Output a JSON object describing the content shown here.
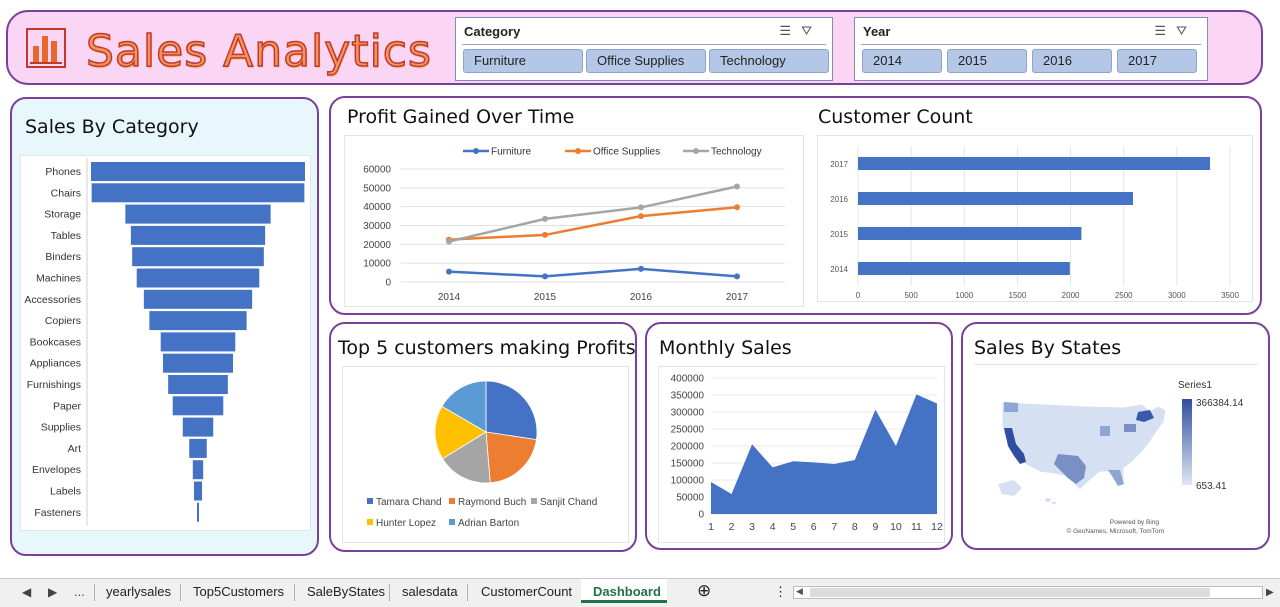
{
  "header": {
    "title": "Sales Analytics",
    "category_slicer": {
      "heading": "Category",
      "items": [
        "Furniture",
        "Office Supplies",
        "Technology"
      ]
    },
    "year_slicer": {
      "heading": "Year",
      "items": [
        "2014",
        "2015",
        "2016",
        "2017"
      ]
    }
  },
  "panels": {
    "sales_by_category": {
      "title": "Sales By Category"
    },
    "profit_over_time": {
      "title": "Profit Gained Over Time"
    },
    "customer_count": {
      "title": "Customer Count"
    },
    "top5": {
      "title": "Top 5 customers making Profits"
    },
    "monthly_sales": {
      "title": "Monthly Sales"
    },
    "sales_by_states": {
      "title": "Sales By States",
      "legend_series": "Series1",
      "max_value": "366384.14",
      "min_value": "653.41",
      "credit_1": "Powered by Bing",
      "credit_2": "© GeoNames, Microsoft, TomTom"
    }
  },
  "tabs": {
    "ellipsis": "...",
    "sheets": [
      "yearlysales",
      "Top5Customers",
      "SaleByStates",
      "salesdata",
      "CustomerCount"
    ],
    "active": "Dashboard",
    "add_symbol": "⊕",
    "menu_symbol": "⋮"
  },
  "colors": {
    "header_bg": "#fbd5f4",
    "panel_border": "#7a3f9a",
    "bar_blue": "#4472c4",
    "orange": "#ed7d31",
    "gray": "#a5a5a5",
    "yellow": "#ffc000",
    "light_blue": "#5b9bd5",
    "excel_green": "#217346"
  },
  "chart_data": [
    {
      "type": "bar",
      "title": "Sales By Category",
      "orientation": "horizontal-funnel",
      "categories": [
        "Phones",
        "Chairs",
        "Storage",
        "Tables",
        "Binders",
        "Machines",
        "Accessories",
        "Copiers",
        "Bookcases",
        "Appliances",
        "Furnishings",
        "Paper",
        "Supplies",
        "Art",
        "Envelopes",
        "Labels",
        "Fasteners"
      ],
      "values": [
        330000,
        328000,
        224000,
        207000,
        203000,
        189000,
        167000,
        150000,
        115000,
        108000,
        92000,
        78000,
        47000,
        27000,
        16000,
        12500,
        3000
      ]
    },
    {
      "type": "line",
      "title": "Profit Gained Over Time",
      "x": [
        "2014",
        "2015",
        "2016",
        "2017"
      ],
      "series": [
        {
          "name": "Furniture",
          "values": [
            5500,
            3000,
            7000,
            3000
          ],
          "color": "#4472c4"
        },
        {
          "name": "Office Supplies",
          "values": [
            22500,
            25000,
            35000,
            39700
          ],
          "color": "#ed7d31"
        },
        {
          "name": "Technology",
          "values": [
            21500,
            33500,
            39600,
            50700
          ],
          "color": "#a5a5a5"
        }
      ],
      "yticks": [
        0,
        10000,
        20000,
        30000,
        40000,
        50000,
        60000
      ],
      "ylim": [
        0,
        60000
      ],
      "legend": "top"
    },
    {
      "type": "bar",
      "title": "Customer Count",
      "orientation": "horizontal",
      "categories": [
        "2017",
        "2016",
        "2015",
        "2014"
      ],
      "values": [
        3312,
        2587,
        2102,
        1993
      ],
      "xticks": [
        0,
        500,
        1000,
        1500,
        2000,
        2500,
        3000,
        3500
      ],
      "xlim": [
        0,
        3500
      ]
    },
    {
      "type": "pie",
      "title": "Top 5 customers making Profits",
      "labels": [
        "Tamara Chand",
        "Raymond Buch",
        "Sanjit Chand",
        "Hunter Lopez",
        "Adrian Barton"
      ],
      "values": [
        8981,
        6976,
        5757,
        5622,
        5444
      ],
      "colors": [
        "#4472c4",
        "#ed7d31",
        "#a5a5a5",
        "#ffc000",
        "#5b9bd5"
      ],
      "legend": "bottom"
    },
    {
      "type": "area",
      "title": "Monthly Sales",
      "x": [
        1,
        2,
        3,
        4,
        5,
        6,
        7,
        8,
        9,
        10,
        11,
        12
      ],
      "values": [
        94000,
        59000,
        205000,
        137000,
        155000,
        152000,
        147000,
        159000,
        307000,
        200000,
        352000,
        325000
      ],
      "yticks": [
        0,
        50000,
        100000,
        150000,
        200000,
        250000,
        300000,
        350000,
        400000
      ],
      "ylim": [
        0,
        400000
      ]
    }
  ]
}
